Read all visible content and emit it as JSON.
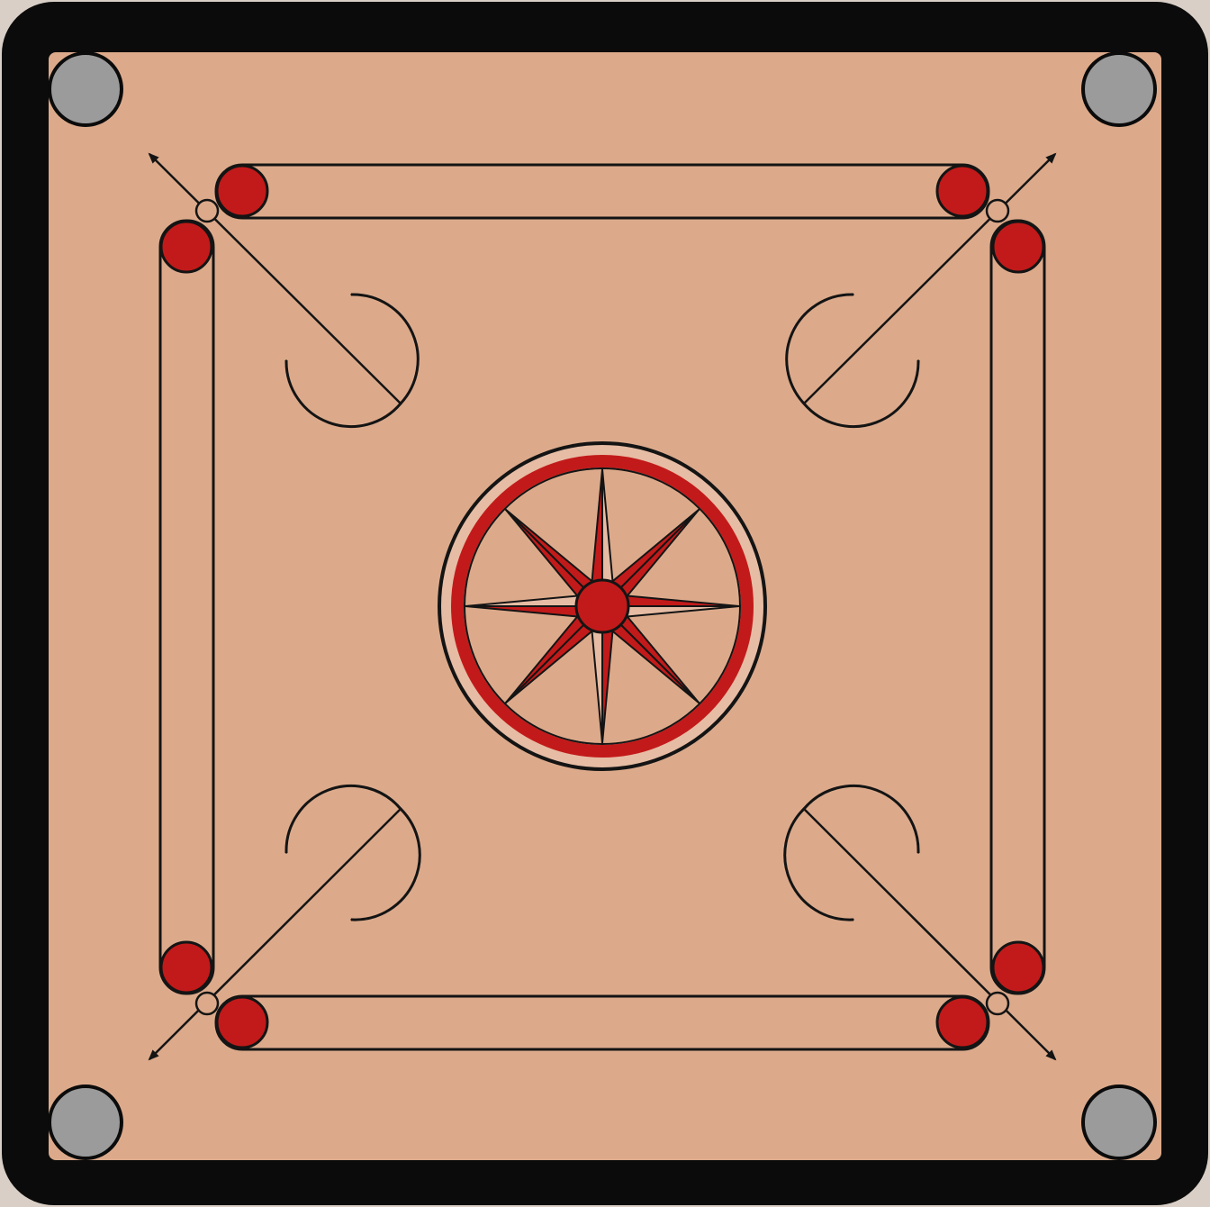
{
  "game": "carrom",
  "board": {
    "name": "Carrom board",
    "colors": {
      "frame": "#0b0b0b",
      "playing_surface": "#dcaa8b",
      "line": "#141414",
      "red_accent": "#c21a1a",
      "pocket": "#9b9b9b",
      "rosette_petal_light": "#e6bca4"
    }
  },
  "pockets": {
    "count": 4,
    "labels": [
      "top-left",
      "top-right",
      "bottom-left",
      "bottom-right"
    ]
  },
  "baselines": {
    "count": 4,
    "sides": [
      "top",
      "bottom",
      "left",
      "right"
    ]
  },
  "foul_lines": {
    "count": 4
  },
  "center": {
    "star_points": 8,
    "rings": 2
  },
  "arc_arrows": {
    "count": 4
  }
}
